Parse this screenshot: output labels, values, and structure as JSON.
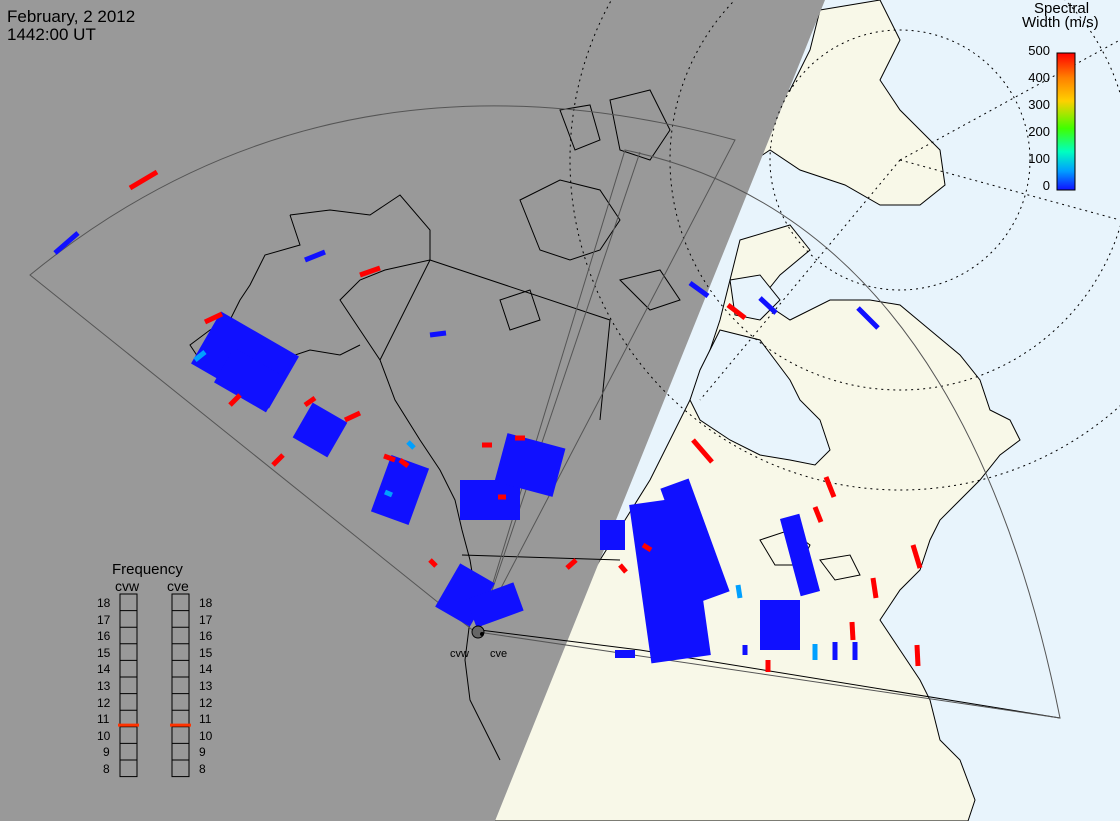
{
  "header": {
    "date": "February, 2 2012",
    "time": "1442:00 UT"
  },
  "colorbar": {
    "title_line1": "Spectral",
    "title_line2": "Width (m/s)",
    "ticks": [
      "500",
      "400",
      "300",
      "200",
      "100",
      "0"
    ],
    "colors": [
      "#ff0000",
      "#ff8000",
      "#ffd000",
      "#40ff00",
      "#00ffc0",
      "#00a0ff",
      "#1010ff"
    ]
  },
  "frequency": {
    "title": "Frequency",
    "radars": [
      "cvw",
      "cve"
    ],
    "levels": [
      "18",
      "17",
      "16",
      "15",
      "14",
      "13",
      "12",
      "11",
      "10",
      "9",
      "8"
    ],
    "selected_mhz": 10.6
  },
  "radar_sites": [
    "cvw",
    "cve"
  ],
  "map": {
    "ocean_color": "#e8f4fc",
    "land_color": "#f8f8e8",
    "night_color": "#999999",
    "scatter_blue": "#1010ff",
    "scatter_red": "#ff0000"
  }
}
